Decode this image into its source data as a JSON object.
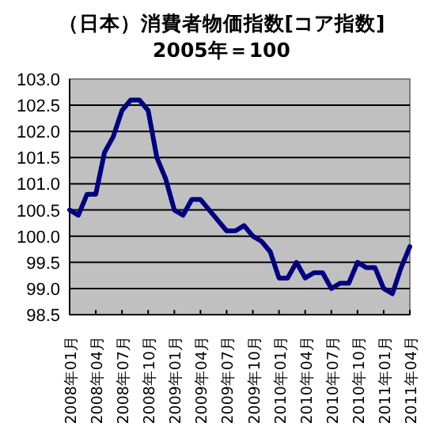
{
  "chart_data": {
    "type": "line",
    "title": "（日本）消費者物価指数[コア指数]",
    "subtitle": "2005年＝100",
    "categories": [
      "2008年01月",
      null,
      null,
      "2008年04月",
      null,
      null,
      "2008年07月",
      null,
      null,
      "2008年10月",
      null,
      null,
      "2009年01月",
      null,
      null,
      "2009年04月",
      null,
      null,
      "2009年07月",
      null,
      null,
      "2009年10月",
      null,
      null,
      "2010年01月",
      null,
      null,
      "2010年04月",
      null,
      null,
      "2010年07月",
      null,
      null,
      "2010年10月",
      null,
      null,
      "2011年01月",
      null,
      null,
      "2011年04月"
    ],
    "series": [
      {
        "color": "#000080",
        "values": [
          100.5,
          100.4,
          100.8,
          100.8,
          101.6,
          101.9,
          102.4,
          102.6,
          102.6,
          102.4,
          101.5,
          101.1,
          100.5,
          100.4,
          100.7,
          100.7,
          100.5,
          100.3,
          100.1,
          100.1,
          100.2,
          100.0,
          99.9,
          99.7,
          99.2,
          99.2,
          99.5,
          99.2,
          99.3,
          99.3,
          99.0,
          99.1,
          99.1,
          99.5,
          99.4,
          99.4,
          99.0,
          98.9,
          99.4,
          99.8
        ]
      }
    ],
    "ylim": [
      98.5,
      103.0
    ],
    "yticks": [
      {
        "value": 98.5,
        "label": "98.5"
      },
      {
        "value": 99.0,
        "label": "99.0"
      },
      {
        "value": 99.5,
        "label": "99.5"
      },
      {
        "value": 100.0,
        "label": "100.0"
      },
      {
        "value": 100.5,
        "label": "100.5"
      },
      {
        "value": 101.0,
        "label": "101.0"
      },
      {
        "value": 101.5,
        "label": "101.5"
      },
      {
        "value": 102.0,
        "label": "102.0"
      },
      {
        "value": 102.5,
        "label": "102.5"
      },
      {
        "value": 103.0,
        "label": "103.0"
      }
    ],
    "grid": "y",
    "marker": "none",
    "line_style": "solid"
  }
}
